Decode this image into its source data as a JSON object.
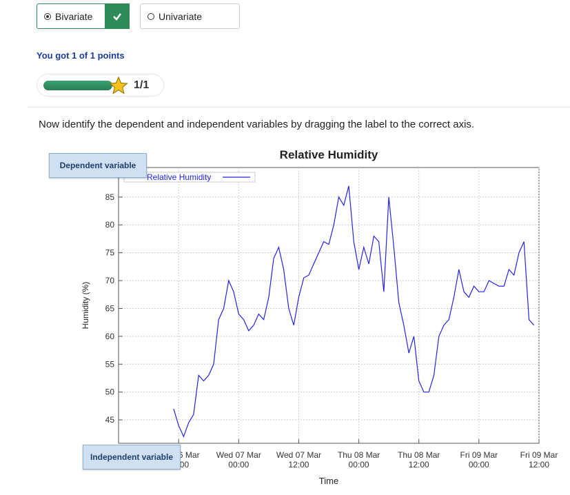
{
  "answer_options": [
    {
      "label": "Bivariate",
      "selected": true
    },
    {
      "label": "Univariate",
      "selected": false
    }
  ],
  "score": {
    "message": "You got 1 of 1 points",
    "progress": "1/1"
  },
  "instruction": "Now identify the dependent and independent variables by dragging the label to the correct axis.",
  "drag_labels": [
    "Dependent variable",
    "Independent variable"
  ],
  "chart_data": {
    "type": "line",
    "title": "Relative Humidity",
    "x_label": "Time",
    "y_label": "Humidity (%)",
    "x": [
      "06 Mar 11:00",
      "06 Mar 12:00",
      "06 Mar 13:00",
      "06 Mar 14:00",
      "06 Mar 15:00",
      "06 Mar 16:00",
      "06 Mar 17:00",
      "06 Mar 18:00",
      "06 Mar 19:00",
      "06 Mar 20:00",
      "06 Mar 21:00",
      "06 Mar 22:00",
      "06 Mar 23:00",
      "07 Mar 00:00",
      "07 Mar 01:00",
      "07 Mar 02:00",
      "07 Mar 03:00",
      "07 Mar 04:00",
      "07 Mar 05:00",
      "07 Mar 06:00",
      "07 Mar 07:00",
      "07 Mar 08:00",
      "07 Mar 09:00",
      "07 Mar 10:00",
      "07 Mar 11:00",
      "07 Mar 12:00",
      "07 Mar 13:00",
      "07 Mar 14:00",
      "07 Mar 15:00",
      "07 Mar 16:00",
      "07 Mar 17:00",
      "07 Mar 18:00",
      "07 Mar 19:00",
      "07 Mar 20:00",
      "07 Mar 21:00",
      "07 Mar 22:00",
      "07 Mar 23:00",
      "08 Mar 00:00",
      "08 Mar 01:00",
      "08 Mar 02:00",
      "08 Mar 03:00",
      "08 Mar 04:00",
      "08 Mar 05:00",
      "08 Mar 06:00",
      "08 Mar 07:00",
      "08 Mar 08:00",
      "08 Mar 09:00",
      "08 Mar 10:00",
      "08 Mar 11:00",
      "08 Mar 12:00",
      "08 Mar 13:00",
      "08 Mar 14:00",
      "08 Mar 15:00",
      "08 Mar 16:00",
      "08 Mar 17:00",
      "08 Mar 18:00",
      "08 Mar 19:00",
      "08 Mar 20:00",
      "08 Mar 21:00",
      "08 Mar 22:00",
      "08 Mar 23:00",
      "09 Mar 00:00",
      "09 Mar 01:00",
      "09 Mar 02:00",
      "09 Mar 03:00",
      "09 Mar 04:00",
      "09 Mar 05:00",
      "09 Mar 06:00",
      "09 Mar 07:00",
      "09 Mar 08:00",
      "09 Mar 09:00",
      "09 Mar 10:00",
      "09 Mar 11:00"
    ],
    "series": [
      {
        "name": "Relative Humidity",
        "color": "#2222ee",
        "values": [
          47,
          44,
          42,
          44.5,
          46,
          53,
          52,
          53,
          55,
          63,
          65,
          70,
          68,
          64,
          63,
          61,
          62,
          64,
          63,
          67,
          74,
          76,
          72,
          65,
          62,
          67,
          70.5,
          71,
          73,
          75,
          77,
          76.5,
          80,
          85,
          83.5,
          87,
          77,
          72,
          76,
          73,
          78,
          77,
          68,
          85,
          76,
          66,
          62,
          57,
          60,
          52,
          50,
          50,
          53,
          60,
          62,
          63,
          67,
          72,
          68,
          67,
          69,
          68,
          68,
          70,
          69.5,
          69,
          69,
          72,
          71,
          75,
          77,
          63,
          62
        ]
      }
    ],
    "xlim": [
      "06 Mar 00:00",
      "09 Mar 12:00"
    ],
    "xticks": [
      {
        "value": "06 Mar 12:00",
        "label": "Tue 06 Mar 12:00"
      },
      {
        "value": "07 Mar 00:00",
        "label": "Wed 07 Mar 00:00"
      },
      {
        "value": "07 Mar 12:00",
        "label": "Wed 07 Mar 12:00"
      },
      {
        "value": "08 Mar 00:00",
        "label": "Thu 08 Mar 00:00"
      },
      {
        "value": "08 Mar 12:00",
        "label": "Thu 08 Mar 12:00"
      },
      {
        "value": "09 Mar 00:00",
        "label": "Fri 09 Mar 00:00"
      },
      {
        "value": "09 Mar 12:00",
        "label": "Fri 09 Mar 12:00"
      }
    ],
    "ylim": [
      40.8,
      90.3
    ],
    "yticks": [
      45,
      50,
      55,
      60,
      65,
      70,
      75,
      80,
      85
    ],
    "grid": true,
    "legend": "top-left"
  }
}
